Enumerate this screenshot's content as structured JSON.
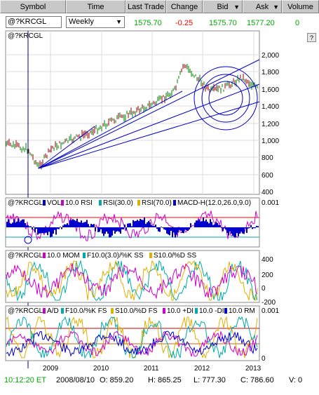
{
  "header": {
    "symbol": "Symbol",
    "time": "Time",
    "last_trade": "Last Trade",
    "change": "Change",
    "bid": "Bid",
    "ask": "Ask",
    "volume": "Volume"
  },
  "quote": {
    "symbol": "@?KRCGL",
    "interval": "Weekly",
    "last": "1575.70",
    "change": "-0.25",
    "bid": "1575.70",
    "ask": "1577.20",
    "volume": "0"
  },
  "help_label": "?",
  "panes": {
    "price": {
      "label": "@?KRCGL",
      "axis": [
        "2,000",
        "1,800",
        "1,600",
        "1,400",
        "1,200",
        "1,000",
        "800",
        "600",
        "400"
      ]
    },
    "indicator1": {
      "prefix": "@?KRCGL",
      "legend": [
        "VOL",
        "10.0 RSI",
        "RSI(30.0)",
        "RSI(70.0)",
        "MACD-H(12.0,26.0,9.0)"
      ],
      "axis_top": "0.001"
    },
    "indicator2": {
      "prefix": "@?KRCGL",
      "legend": [
        "10.0 MOM",
        "F10.0(3.0)/%K SS",
        "S10.0/%D SS"
      ],
      "axis": [
        "400",
        "200",
        "0",
        "-200"
      ]
    },
    "indicator3": {
      "prefix": "@?KRCGL",
      "legend": [
        "A/D",
        "F10.0/%K FS",
        "S10.0/%D FS",
        "10.0 +DI",
        "10.0 -DI",
        "10.0 RM"
      ],
      "axis_top": "0.001",
      "axis_bottom": "0"
    }
  },
  "x_axis": [
    "2009",
    "2010",
    "2011",
    "2012",
    "2013"
  ],
  "status": {
    "time": "10:12:20 ET",
    "date": "2008/08/10",
    "open": "O: 859.20",
    "high": "H: 865.25",
    "low": "L: 777.30",
    "close": "C: 786.60",
    "volume": "V: 0"
  },
  "colors": {
    "header_bg": "#c8c8c8",
    "up": "#00aa00",
    "down": "#ff0000",
    "trendline": "#0000cc",
    "status_green": "#00aa00"
  }
}
